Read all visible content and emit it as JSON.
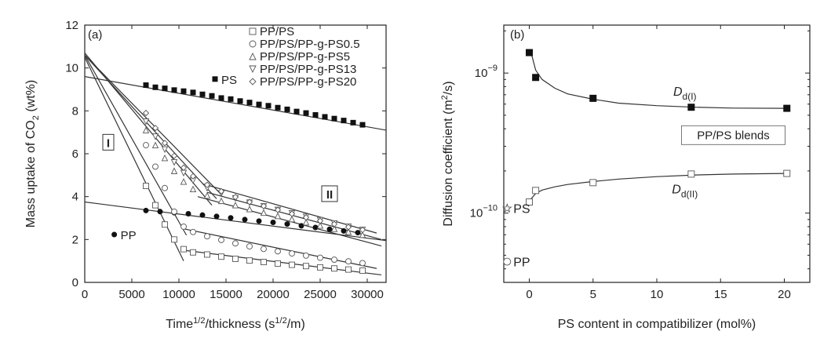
{
  "chart_data": [
    {
      "panel_label": "(a)",
      "type": "scatter",
      "xlabel": "Time",
      "xlabel_sup": "1/2",
      "xlabel_mid": "/thickness (s",
      "xlabel_sup2": "1/2",
      "xlabel_tail": "/m)",
      "ylabel": "Mass uptake of CO",
      "ylabel_sub": "2",
      "ylabel_tail": " (wt%)",
      "xlim": [
        0,
        32000
      ],
      "ylim": [
        0,
        12
      ],
      "xticks": [
        "0",
        "5000",
        "10000",
        "15000",
        "20000",
        "25000",
        "30000"
      ],
      "yticks": [
        "0",
        "2",
        "4",
        "6",
        "8",
        "10",
        "12"
      ],
      "legend": [
        {
          "marker": "square-open",
          "label": "PP/PS"
        },
        {
          "marker": "circle-open",
          "label": "PP/PS/PP-g-PS0.5"
        },
        {
          "marker": "triangle-up-open",
          "label": "PP/PS/PP-g-PS5"
        },
        {
          "marker": "triangle-down-open",
          "label": "PP/PS/PP-g-PS13"
        },
        {
          "marker": "diamond-open",
          "label": "PP/PS/PP-g-PS20"
        }
      ],
      "annotations": [
        {
          "text": "PS",
          "x": 15000,
          "y": 9.3,
          "marker": "square-filled"
        },
        {
          "text": "PP",
          "x": 4300,
          "y": 2.05,
          "marker": "circle-filled"
        },
        {
          "text": "I",
          "x": 2500,
          "y": 6.5,
          "style": "boxed"
        },
        {
          "text": "II",
          "x": 26000,
          "y": 4.1,
          "style": "boxed"
        }
      ],
      "series": [
        {
          "name": "PS",
          "marker": "square-filled",
          "x": [
            6500,
            7500,
            8500,
            9500,
            10500,
            11500,
            12500,
            13500,
            14500,
            15500,
            16500,
            17500,
            18500,
            19500,
            20500,
            21500,
            22500,
            23500,
            24500,
            25500,
            26500,
            27500,
            28500,
            29500
          ],
          "y": [
            9.2,
            9.1,
            9.05,
            8.97,
            8.92,
            8.86,
            8.77,
            8.7,
            8.6,
            8.55,
            8.46,
            8.39,
            8.3,
            8.24,
            8.15,
            8.07,
            7.97,
            7.9,
            7.81,
            7.72,
            7.64,
            7.55,
            7.45,
            7.35
          ]
        },
        {
          "name": "PP",
          "marker": "circle-filled",
          "x": [
            6500,
            8000,
            9500,
            11000,
            12500,
            14000,
            15500,
            17000,
            18500,
            20000,
            21500,
            23000,
            24500,
            26000,
            27500,
            29000
          ],
          "y": [
            3.35,
            3.3,
            3.25,
            3.2,
            3.14,
            3.08,
            3.01,
            2.93,
            2.86,
            2.8,
            2.72,
            2.64,
            2.56,
            2.48,
            2.4,
            2.32
          ]
        },
        {
          "name": "PP/PS",
          "marker": "square-open",
          "x": [
            6500,
            7500,
            8500,
            9500,
            10500,
            11500,
            13000,
            14500,
            16000,
            17500,
            19000,
            20500,
            22000,
            23500,
            25000,
            26500,
            28000,
            29500
          ],
          "y": [
            4.5,
            3.6,
            2.7,
            2.0,
            1.55,
            1.4,
            1.3,
            1.2,
            1.1,
            1.02,
            0.95,
            0.88,
            0.82,
            0.76,
            0.7,
            0.65,
            0.6,
            0.55
          ]
        },
        {
          "name": "PP/PS/PP-g-PS0.5",
          "marker": "circle-open",
          "x": [
            6500,
            7500,
            8500,
            9500,
            10500,
            11500,
            13000,
            14500,
            16000,
            17500,
            19000,
            20500,
            22000,
            23500,
            25000,
            26500,
            28000,
            29500
          ],
          "y": [
            6.4,
            5.4,
            4.4,
            3.3,
            2.6,
            2.35,
            2.15,
            1.98,
            1.82,
            1.68,
            1.56,
            1.45,
            1.35,
            1.25,
            1.15,
            1.06,
            0.98,
            0.9
          ]
        },
        {
          "name": "PP/PS/PP-g-PS5",
          "marker": "triangle-up-open",
          "x": [
            6500,
            7500,
            8500,
            9500,
            10500,
            11500,
            13000,
            14500,
            16000,
            17500,
            19000,
            20500,
            22000,
            23500,
            25000,
            26500,
            28000,
            29500
          ],
          "y": [
            7.1,
            6.4,
            5.8,
            5.2,
            4.7,
            4.35,
            4.05,
            3.8,
            3.6,
            3.42,
            3.25,
            3.1,
            2.95,
            2.8,
            2.65,
            2.5,
            2.36,
            2.22
          ]
        },
        {
          "name": "PP/PS/PP-g-PS13",
          "marker": "triangle-down-open",
          "x": [
            6500,
            7500,
            8500,
            9500,
            10500,
            11500,
            13000,
            14500,
            16000,
            17500,
            19000,
            20500,
            22000,
            23500,
            25000,
            26500,
            28000,
            29500
          ],
          "y": [
            7.5,
            6.8,
            6.2,
            5.6,
            5.1,
            4.75,
            4.4,
            4.15,
            3.92,
            3.72,
            3.55,
            3.38,
            3.22,
            3.06,
            2.9,
            2.75,
            2.6,
            2.45
          ]
        },
        {
          "name": "PP/PS/PP-g-PS20",
          "marker": "diamond-open",
          "x": [
            6500,
            7500,
            8500,
            9500,
            10500,
            11500,
            13000,
            14500,
            16000,
            17500,
            19000,
            20500,
            22000,
            23500,
            25000,
            26500,
            28000,
            29500
          ],
          "y": [
            7.9,
            7.2,
            6.5,
            5.9,
            5.35,
            4.95,
            4.55,
            4.25,
            3.98,
            3.75,
            3.56,
            3.38,
            3.2,
            3.03,
            2.87,
            2.72,
            2.58,
            2.45
          ]
        }
      ],
      "fit_lines": [
        {
          "x": [
            0,
            32000
          ],
          "y": [
            9.6,
            7.1
          ]
        },
        {
          "x": [
            0,
            32000
          ],
          "y": [
            3.75,
            1.95
          ]
        },
        {
          "x": [
            0,
            10500
          ],
          "y": [
            10.5,
            1.0
          ]
        },
        {
          "x": [
            0,
            10800
          ],
          "y": [
            10.6,
            2.2
          ]
        },
        {
          "x": [
            0,
            13500
          ],
          "y": [
            10.7,
            3.6
          ]
        },
        {
          "x": [
            0,
            14000
          ],
          "y": [
            10.6,
            3.9
          ]
        },
        {
          "x": [
            0,
            14500
          ],
          "y": [
            10.6,
            4.1
          ]
        },
        {
          "x": [
            10500,
            31500
          ],
          "y": [
            1.5,
            0.35
          ]
        },
        {
          "x": [
            10500,
            31000
          ],
          "y": [
            2.5,
            0.65
          ]
        },
        {
          "x": [
            12000,
            31500
          ],
          "y": [
            4.0,
            1.7
          ]
        },
        {
          "x": [
            13000,
            31500
          ],
          "y": [
            4.2,
            2.0
          ]
        },
        {
          "x": [
            12500,
            31000
          ],
          "y": [
            4.6,
            2.3
          ]
        }
      ]
    },
    {
      "panel_label": "(b)",
      "type": "scatter",
      "yscale": "log",
      "xlabel": "PS content in compatibilizer (mol%)",
      "ylabel": "Diffusion coefficient (m",
      "ylabel_sup": "2",
      "ylabel_tail": "/s)",
      "xlim": [
        -2,
        22
      ],
      "ylim": [
        3.2e-11,
        2.2e-09
      ],
      "xticks": [
        "0",
        "5",
        "10",
        "15",
        "20"
      ],
      "ytick_values": [
        1e-10,
        1e-09
      ],
      "ytick_labels": [
        {
          "base": "10",
          "exp": "−10"
        },
        {
          "base": "10",
          "exp": "−9"
        }
      ],
      "legend_box": "PP/PS blends",
      "series": [
        {
          "name": "D_d(I)",
          "label_main": "D",
          "label_sub": "d(I)",
          "marker": "square-filled",
          "x": [
            0,
            0.5,
            5,
            12.7,
            20.2
          ],
          "y": [
            1.4e-09,
            9.3e-10,
            6.6e-10,
            5.7e-10,
            5.6e-10
          ]
        },
        {
          "name": "D_d(II)",
          "label_main": "D",
          "label_sub": "d(II)",
          "marker": "square-open",
          "x": [
            0,
            0.5,
            5,
            12.7,
            20.2
          ],
          "y": [
            1.2e-10,
            1.45e-10,
            1.65e-10,
            1.9e-10,
            1.92e-10
          ]
        }
      ],
      "fit_curves": [
        {
          "x": [
            0.1,
            0.5,
            1,
            2,
            3,
            5,
            7,
            10,
            13,
            16,
            20.2
          ],
          "y": [
            1.45e-09,
            1.05e-09,
            9e-10,
            7.8e-10,
            7.1e-10,
            6.5e-10,
            6.1e-10,
            5.85e-10,
            5.7e-10,
            5.62e-10,
            5.6e-10
          ]
        },
        {
          "x": [
            0.1,
            0.5,
            1,
            2,
            3,
            5,
            7,
            10,
            13,
            16,
            20.2
          ],
          "y": [
            1.25e-10,
            1.38e-10,
            1.46e-10,
            1.54e-10,
            1.6e-10,
            1.68e-10,
            1.75e-10,
            1.82e-10,
            1.87e-10,
            1.9e-10,
            1.92e-10
          ]
        }
      ],
      "annotations": [
        {
          "text": "PS",
          "x": -1.0,
          "y": 1.08e-10,
          "marker": "star-open"
        },
        {
          "text": "PP",
          "x": -1.0,
          "y": 4.5e-11,
          "marker": "circle-open"
        }
      ]
    }
  ]
}
